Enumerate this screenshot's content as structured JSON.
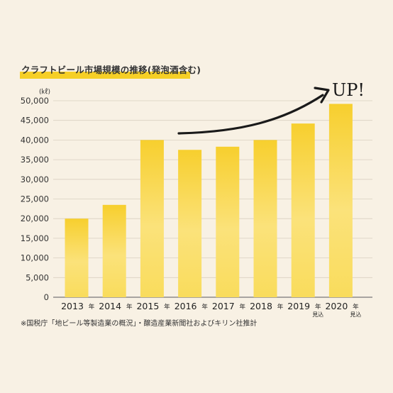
{
  "chart_data": {
    "type": "bar",
    "title": "クラフトビール市場規模の推移(発泡酒含む)",
    "unit": "(㎘)",
    "categories": [
      "2013",
      "2014",
      "2015",
      "2016",
      "2017",
      "2018",
      "2019",
      "2020"
    ],
    "year_suffix": "年",
    "forecast_note": "見込",
    "forecast_categories": [
      "2019",
      "2020"
    ],
    "values": [
      20000,
      23500,
      40000,
      37500,
      38300,
      40000,
      44200,
      49200
    ],
    "ylim": [
      0,
      50000
    ],
    "yticks": [
      "0",
      "5,000",
      "10,000",
      "15,000",
      "20,000",
      "25,000",
      "30,000",
      "35,000",
      "40,000",
      "45,000",
      "50,000"
    ],
    "grid": true,
    "annotation": "UP!",
    "source_note": "※国税庁「地ビール等製造業の概況」・醸造産業新聞社およびキリン社推計",
    "colors": {
      "bar_top": "#f7cf2e",
      "bar_mid": "#fbe27a",
      "bar_bottom": "#f9dc5c",
      "background": "#f8f1e4",
      "grid": "#d9d0c0"
    }
  }
}
